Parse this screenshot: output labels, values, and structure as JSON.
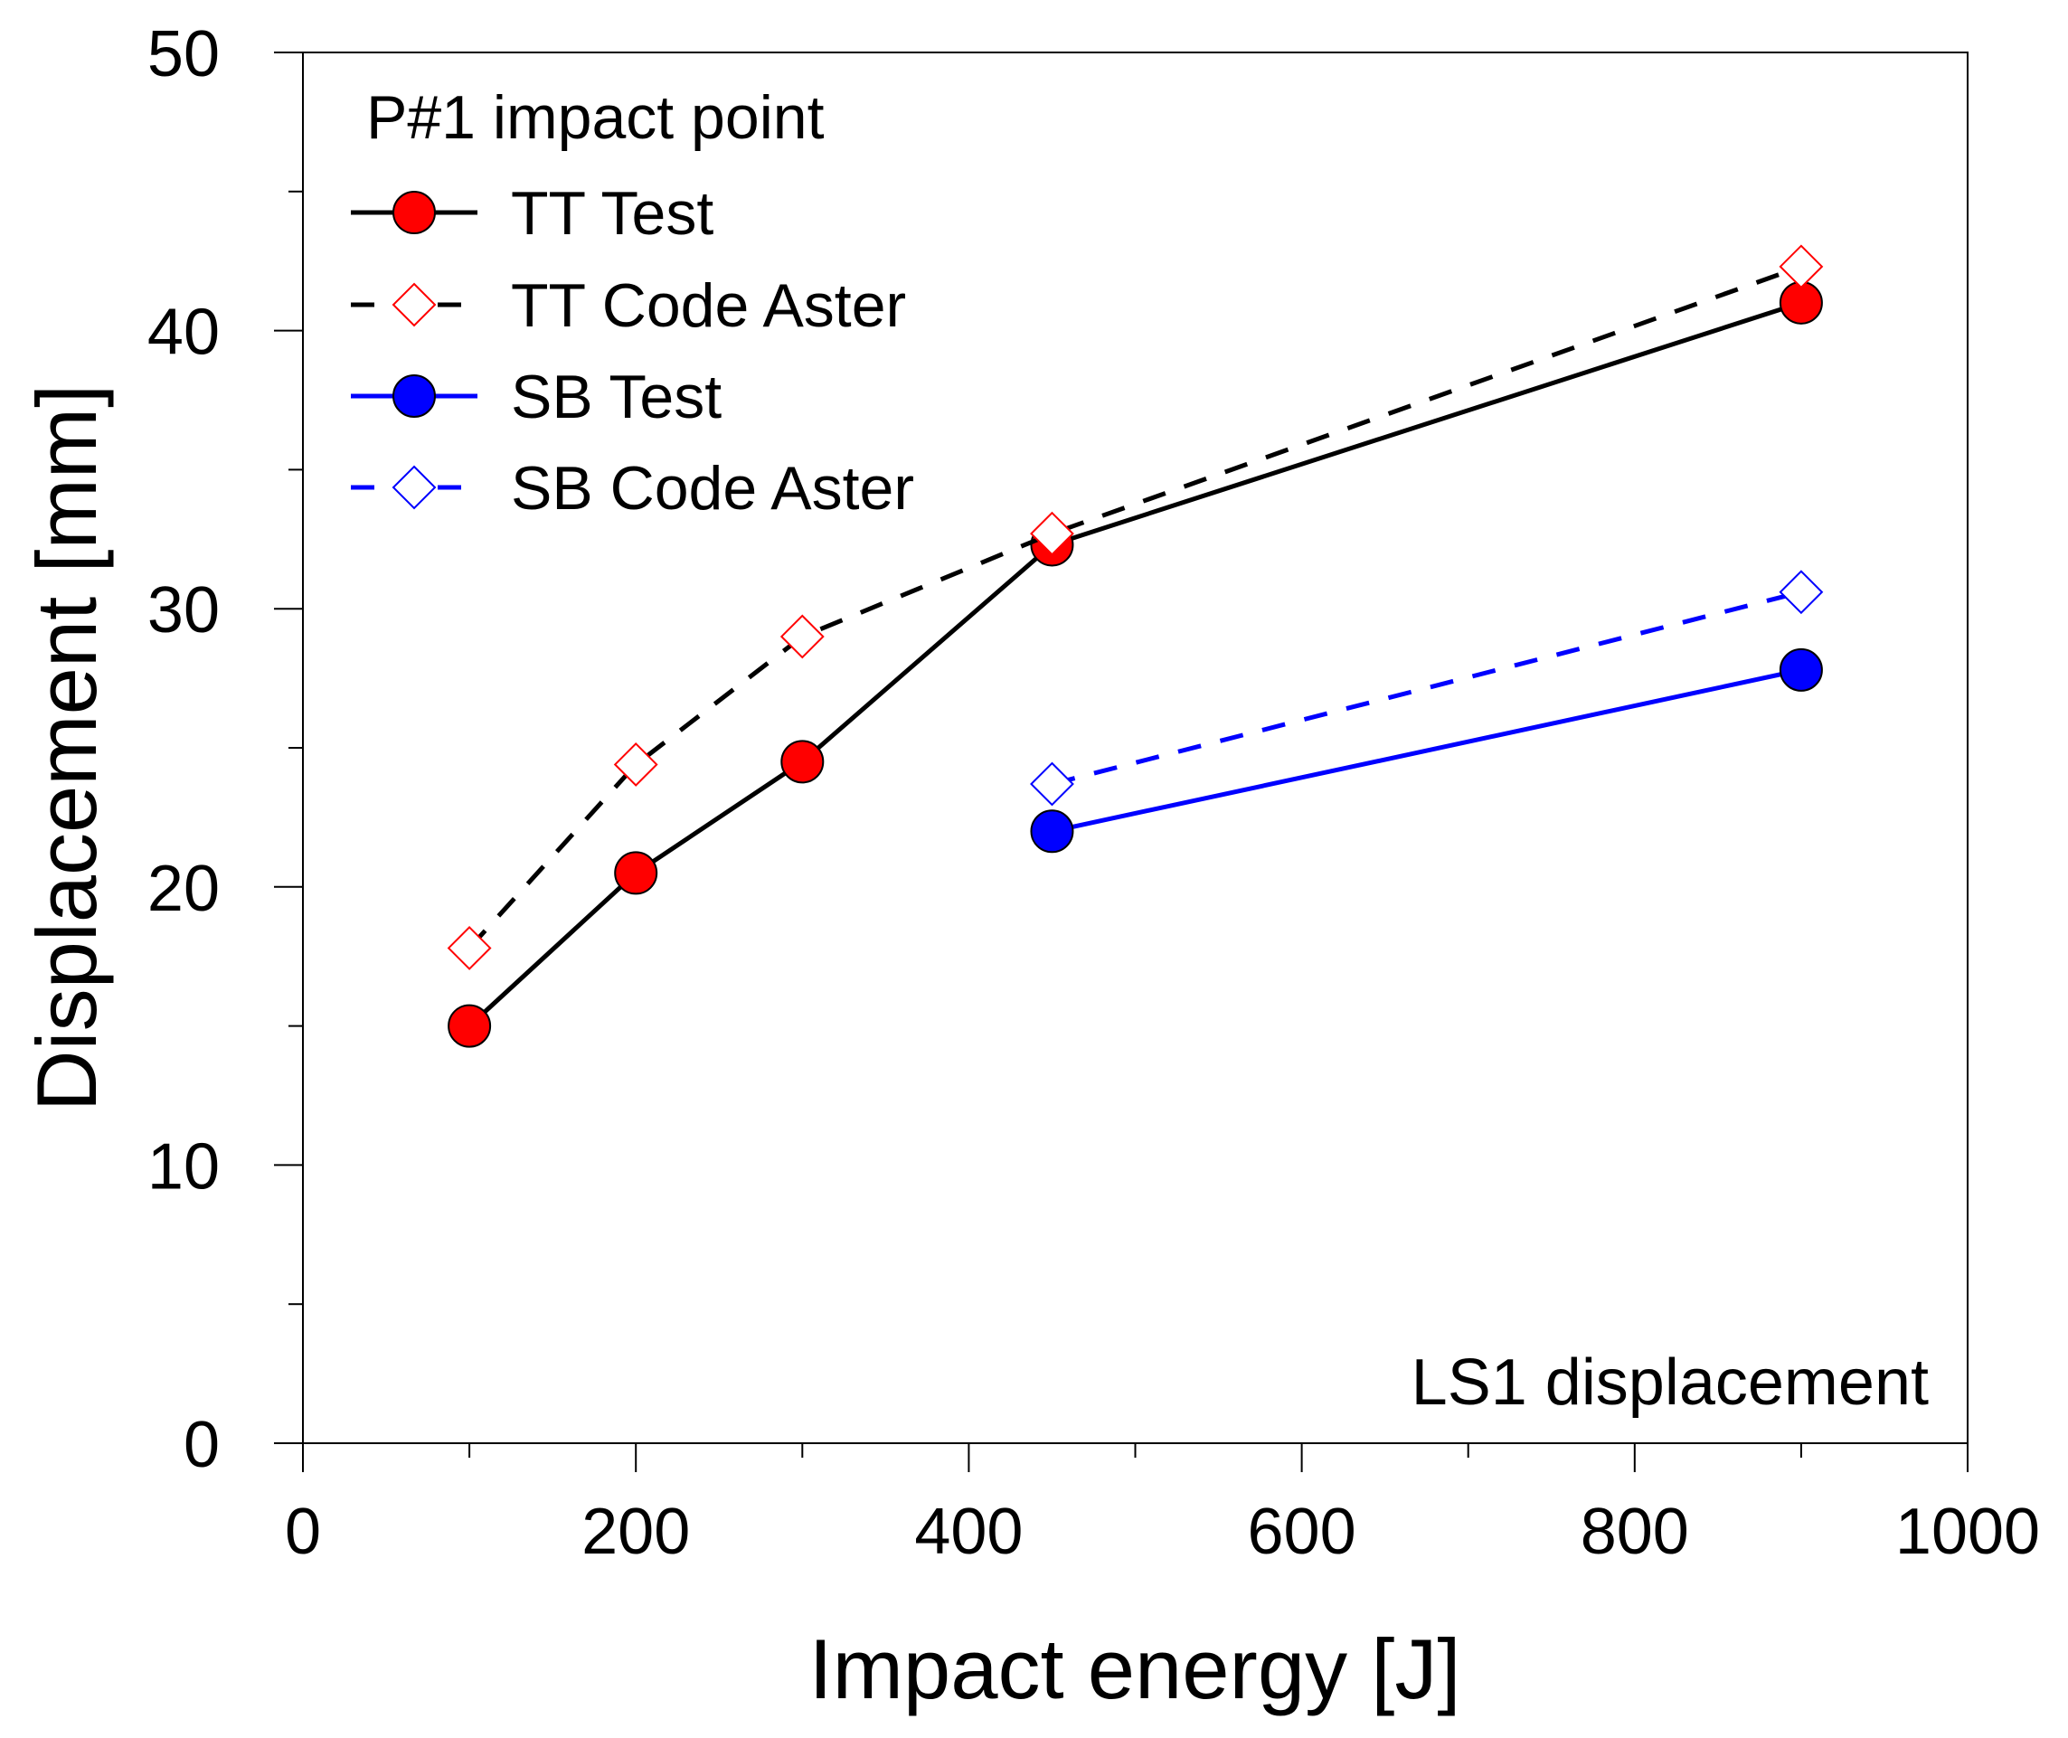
{
  "chart_data": {
    "type": "line",
    "title": "",
    "xlabel": "Impact energy [J]",
    "ylabel": "Displacement  [mm]",
    "xlim": [
      0,
      1000
    ],
    "ylim": [
      0,
      50
    ],
    "x_major_ticks": [
      0,
      200,
      400,
      600,
      800,
      1000
    ],
    "x_minor_ticks": [
      100,
      300,
      500,
      700,
      900
    ],
    "y_major_ticks": [
      0,
      10,
      20,
      30,
      40,
      50
    ],
    "y_minor_ticks": [
      5,
      15,
      25,
      35,
      45
    ],
    "x_tick_labels": [
      "0",
      "200",
      "400",
      "600",
      "800",
      "1000"
    ],
    "y_tick_labels": [
      "0",
      "10",
      "20",
      "30",
      "40",
      "50"
    ],
    "grid": false,
    "legend_title": "P#1 impact point",
    "legend_position": "top-left",
    "annotation": "LS1 displacement",
    "series": [
      {
        "name": "TT Test",
        "line_color": "#000000",
        "marker_color": "#ff0000",
        "line_style": "solid",
        "marker": "circle-filled",
        "x": [
          100,
          200,
          300,
          450,
          900
        ],
        "y": [
          15.0,
          20.5,
          24.5,
          32.3,
          41.0
        ]
      },
      {
        "name": "TT Code Aster",
        "line_color": "#000000",
        "marker_color": "#ff0000",
        "line_style": "dashed",
        "marker": "diamond-open",
        "x": [
          100,
          200,
          300,
          450,
          900
        ],
        "y": [
          17.8,
          24.4,
          29.0,
          32.7,
          42.3
        ]
      },
      {
        "name": "SB Test",
        "line_color": "#0000ff",
        "marker_color": "#0000ff",
        "line_style": "solid",
        "marker": "circle-filled",
        "x": [
          450,
          900
        ],
        "y": [
          22.0,
          27.8
        ]
      },
      {
        "name": "SB Code Aster",
        "line_color": "#0000ff",
        "marker_color": "#0000ff",
        "line_style": "dashed",
        "marker": "diamond-open",
        "x": [
          450,
          900
        ],
        "y": [
          23.7,
          30.6
        ]
      }
    ]
  }
}
